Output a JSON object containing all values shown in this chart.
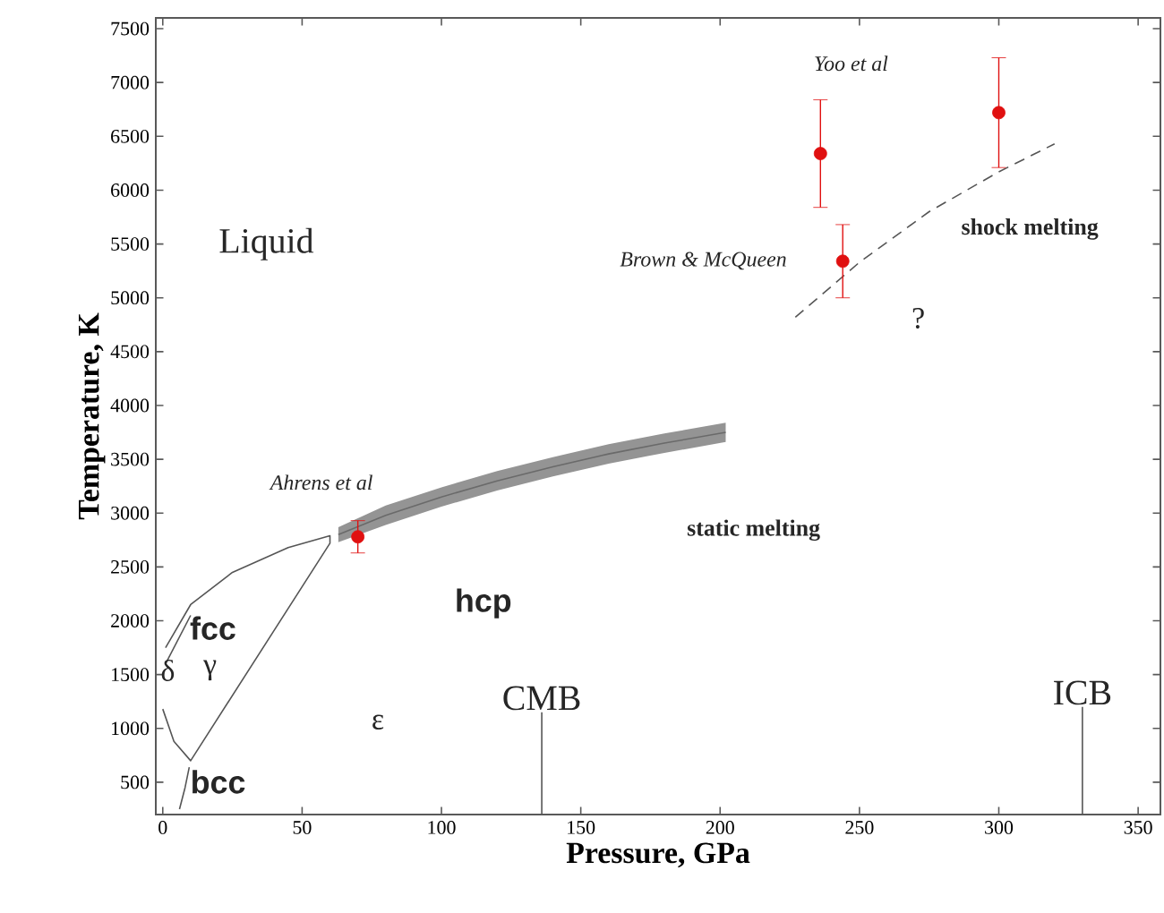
{
  "chart_data": {
    "type": "line",
    "xlabel": "Pressure, GPa",
    "ylabel": "Temperature, K",
    "xlim": [
      -2.5,
      358
    ],
    "ylim": [
      200,
      7600
    ],
    "xticks": [
      0,
      50,
      100,
      150,
      200,
      250,
      300,
      350
    ],
    "yticks": [
      500,
      1000,
      1500,
      2000,
      2500,
      3000,
      3500,
      4000,
      4500,
      5000,
      5500,
      6000,
      6500,
      7000,
      7500
    ],
    "series": [
      {
        "color": "#555555",
        "line_style": "solid",
        "x": [
          0,
          4,
          10,
          60,
          60,
          45,
          25,
          10,
          1
        ],
        "values": [
          1180,
          880,
          700,
          2720,
          2790,
          2680,
          2450,
          2150,
          1750
        ]
      },
      {
        "color": "#555555",
        "line_style": "solid",
        "x": [
          1,
          10
        ],
        "values": [
          1600,
          2050
        ]
      },
      {
        "color": "#555555",
        "line_style": "solid",
        "x": [
          6,
          8,
          9.5
        ],
        "values": [
          250,
          450,
          640
        ]
      },
      {
        "color": "#555555",
        "line_style": "solid",
        "x": [
          136,
          136
        ],
        "values": [
          200,
          1150
        ]
      },
      {
        "color": "#555555",
        "line_style": "solid",
        "x": [
          330,
          330
        ],
        "values": [
          200,
          1200
        ]
      },
      {
        "color": "#6a6a6a",
        "line_style": "solid",
        "x": [
          63,
          80,
          100,
          120,
          140,
          160,
          180,
          202
        ],
        "values": [
          2800,
          2980,
          3150,
          3300,
          3430,
          3550,
          3650,
          3750
        ],
        "lower": [
          2730,
          2890,
          3060,
          3210,
          3340,
          3460,
          3560,
          3660
        ],
        "upper": [
          2870,
          3070,
          3240,
          3390,
          3520,
          3640,
          3740,
          3840
        ]
      },
      {
        "color": "#555555",
        "line_style": "dashed",
        "x": [
          227,
          250,
          275,
          300,
          320
        ],
        "values": [
          4820,
          5330,
          5800,
          6170,
          6430
        ]
      },
      {
        "type": "scatter",
        "color": "#e01010",
        "marker": "circle",
        "x": [
          70,
          236,
          244,
          300
        ],
        "values": [
          2780,
          6340,
          5340,
          6720
        ],
        "errors": [
          150,
          500,
          340,
          510
        ]
      }
    ],
    "annotations": [
      "Liquid",
      "hcp",
      "fcc",
      "γ",
      "δ",
      "ε",
      "bcc",
      {
        "text": "CMB",
        "x": 136,
        "y": 1150
      },
      {
        "text": "ICB",
        "x": 330,
        "y": 1200
      },
      "Yoo et al",
      "Brown & McQueen",
      "Ahrens et al",
      "static melting",
      "shock melting",
      "?"
    ]
  }
}
